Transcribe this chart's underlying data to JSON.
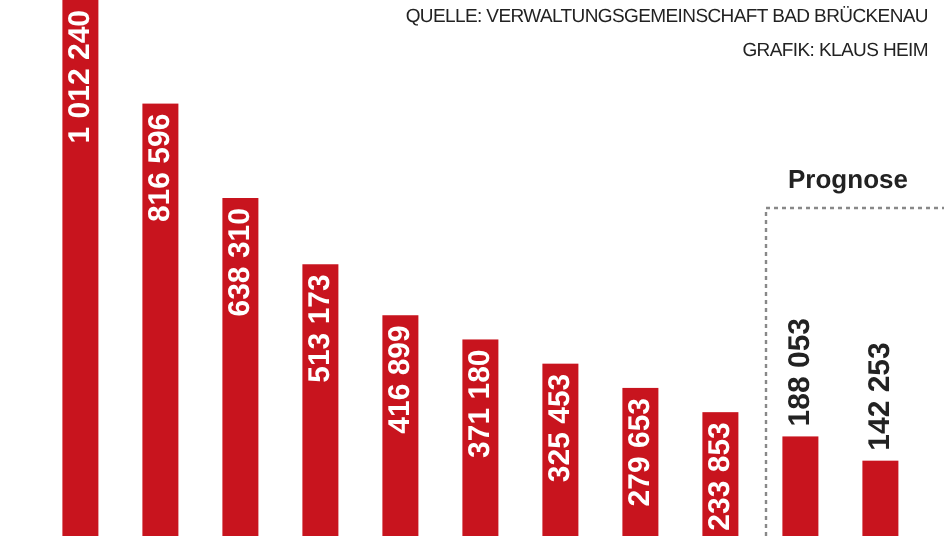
{
  "chart_data": {
    "type": "bar",
    "categories": [
      null,
      null,
      null,
      null,
      null,
      null,
      null,
      null,
      null,
      null,
      null
    ],
    "series": [
      {
        "color": "#c8141e",
        "values": [
          1012240,
          816596,
          638310,
          513173,
          416899,
          371180,
          325453,
          279653,
          233853,
          null,
          null
        ]
      },
      {
        "color": "#c8141e",
        "values": [
          null,
          null,
          null,
          null,
          null,
          null,
          null,
          null,
          null,
          188053,
          142253
        ]
      }
    ],
    "stacked": true,
    "ylim": [
      0,
      1012240
    ],
    "tick_labels": false,
    "data_labels": true,
    "annotations": [
      "QUELLE: VERWALTUNGSGEMEINSCHAFT BAD BRÜCKENAU",
      "GRAFIK: KLAUS HEIM",
      "Prognose"
    ]
  }
}
